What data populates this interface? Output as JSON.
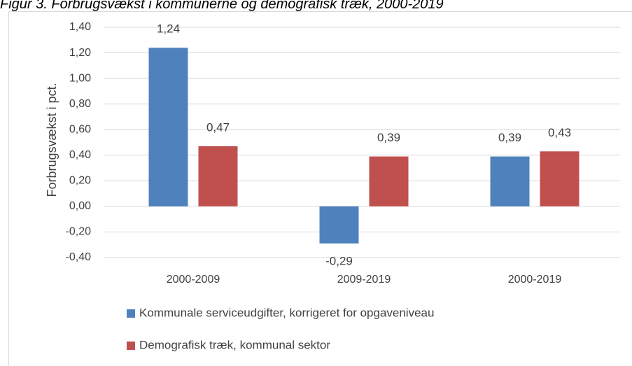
{
  "chart_data": {
    "type": "bar",
    "title": "Figur 3. Forbrugsvækst i kommunerne og demografisk træk, 2000-2019",
    "y_label": "Forbrugsvækst i pct.",
    "categories": [
      "2000-2009",
      "2009-2019",
      "2000-2019"
    ],
    "series": [
      {
        "name": "Kommunale serviceudgifter, korrigeret for opgaveniveau",
        "color": "#4f81bd",
        "values": [
          1.24,
          -0.29,
          0.39
        ],
        "value_labels": [
          "1,24",
          "-0,29",
          "0,39"
        ]
      },
      {
        "name": "Demografisk træk, kommunal sektor",
        "color": "#c0504d",
        "values": [
          0.47,
          0.39,
          0.43
        ],
        "value_labels": [
          "0,47",
          "0,39",
          "0,43"
        ]
      }
    ],
    "ylim": [
      -0.4,
      1.4
    ],
    "yticks": [
      {
        "value": -0.4,
        "label": "-0,40"
      },
      {
        "value": -0.2,
        "label": "-0,20"
      },
      {
        "value": 0,
        "label": "0,00"
      },
      {
        "value": 0.2,
        "label": "0,20"
      },
      {
        "value": 0.4,
        "label": "0,40"
      },
      {
        "value": 0.6,
        "label": "0,60"
      },
      {
        "value": 0.8,
        "label": "0,80"
      },
      {
        "value": 1.0,
        "label": "1,00"
      },
      {
        "value": 1.2,
        "label": "1,20"
      },
      {
        "value": 1.4,
        "label": "1,40"
      }
    ],
    "grid": true,
    "legend": "bottom"
  }
}
